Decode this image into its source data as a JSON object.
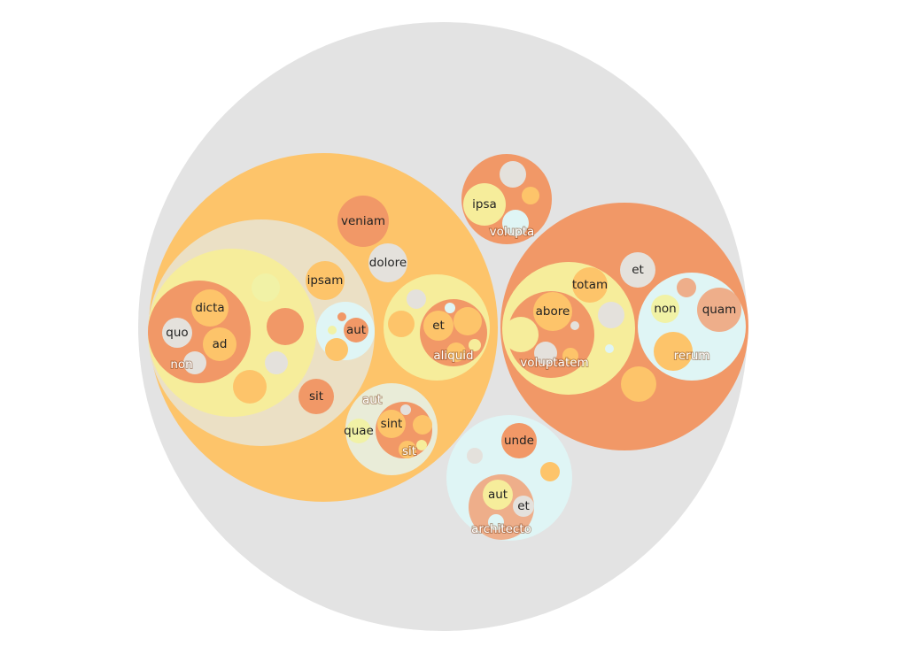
{
  "palette": {
    "root": "#e3e3e3",
    "orange": "#fdc46a",
    "beige": "#ebe0c5",
    "yellow": "#f6ed9b",
    "pale_yellow": "#f1f2a6",
    "dark_orange": "#f19867",
    "salmon": "#eeae8a",
    "cyan": "#dff5f5",
    "gray": "#e4e1dc",
    "cream": "#e9ecd8"
  },
  "nodes": [
    {
      "label": "",
      "color": "root"
    },
    {
      "label": "",
      "color": "orange"
    },
    {
      "label": "",
      "color": "beige"
    },
    {
      "label": "",
      "color": "yellow"
    },
    {
      "label": "non",
      "color": "dark_orange"
    },
    {
      "label": "dicta",
      "color": "orange"
    },
    {
      "label": "quo",
      "color": "gray"
    },
    {
      "label": "ad",
      "color": "orange"
    },
    {
      "label": "",
      "color": "gray"
    },
    {
      "label": "",
      "color": "pale_yellow"
    },
    {
      "label": "",
      "color": "dark_orange"
    },
    {
      "label": "",
      "color": "gray"
    },
    {
      "label": "",
      "color": "orange"
    },
    {
      "label": "ipsam",
      "color": "orange"
    },
    {
      "label": "",
      "color": "cyan"
    },
    {
      "label": "aut",
      "color": "dark_orange"
    },
    {
      "label": "",
      "color": "dark_orange"
    },
    {
      "label": "",
      "color": "pale_yellow"
    },
    {
      "label": "",
      "color": "orange"
    },
    {
      "label": "sit",
      "color": "dark_orange"
    },
    {
      "label": "veniam",
      "color": "dark_orange"
    },
    {
      "label": "dolore",
      "color": "gray"
    },
    {
      "label": "",
      "color": "yellow"
    },
    {
      "label": "",
      "color": "gray"
    },
    {
      "label": "",
      "color": "orange"
    },
    {
      "label": "aliquid",
      "color": "dark_orange"
    },
    {
      "label": "et",
      "color": "orange"
    },
    {
      "label": "",
      "color": "orange"
    },
    {
      "label": "",
      "color": "cyan"
    },
    {
      "label": "",
      "color": "orange"
    },
    {
      "label": "",
      "color": "yellow"
    },
    {
      "label": "aut",
      "color": "cream"
    },
    {
      "label": "quae",
      "color": "pale_yellow"
    },
    {
      "label": "sit",
      "color": "dark_orange"
    },
    {
      "label": "sint",
      "color": "orange"
    },
    {
      "label": "",
      "color": "gray"
    },
    {
      "label": "",
      "color": "orange"
    },
    {
      "label": "",
      "color": "orange"
    },
    {
      "label": "",
      "color": "yellow"
    },
    {
      "label": "volupta",
      "color": "dark_orange"
    },
    {
      "label": "ipsa",
      "color": "yellow"
    },
    {
      "label": "",
      "color": "gray"
    },
    {
      "label": "",
      "color": "cyan"
    },
    {
      "label": "",
      "color": "orange"
    },
    {
      "label": "",
      "color": "dark_orange"
    },
    {
      "label": "",
      "color": "yellow"
    },
    {
      "label": "voluptatem",
      "color": "dark_orange"
    },
    {
      "label": "abore",
      "color": "orange"
    },
    {
      "label": "",
      "color": "yellow"
    },
    {
      "label": "",
      "color": "gray"
    },
    {
      "label": "",
      "color": "orange"
    },
    {
      "label": "",
      "color": "gray"
    },
    {
      "label": "totam",
      "color": "orange"
    },
    {
      "label": "",
      "color": "gray"
    },
    {
      "label": "",
      "color": "cyan"
    },
    {
      "label": "et",
      "color": "gray"
    },
    {
      "label": "rerum",
      "color": "cyan"
    },
    {
      "label": "non",
      "color": "pale_yellow"
    },
    {
      "label": "quam",
      "color": "salmon"
    },
    {
      "label": "",
      "color": "salmon"
    },
    {
      "label": "",
      "color": "orange"
    },
    {
      "label": "",
      "color": "orange"
    },
    {
      "label": "",
      "color": "cyan"
    },
    {
      "label": "unde",
      "color": "dark_orange"
    },
    {
      "label": "",
      "color": "gray"
    },
    {
      "label": "",
      "color": "orange"
    },
    {
      "label": "architecto",
      "color": "salmon"
    },
    {
      "label": "aut",
      "color": "yellow"
    },
    {
      "label": "et",
      "color": "gray"
    },
    {
      "label": "",
      "color": "cyan"
    }
  ]
}
